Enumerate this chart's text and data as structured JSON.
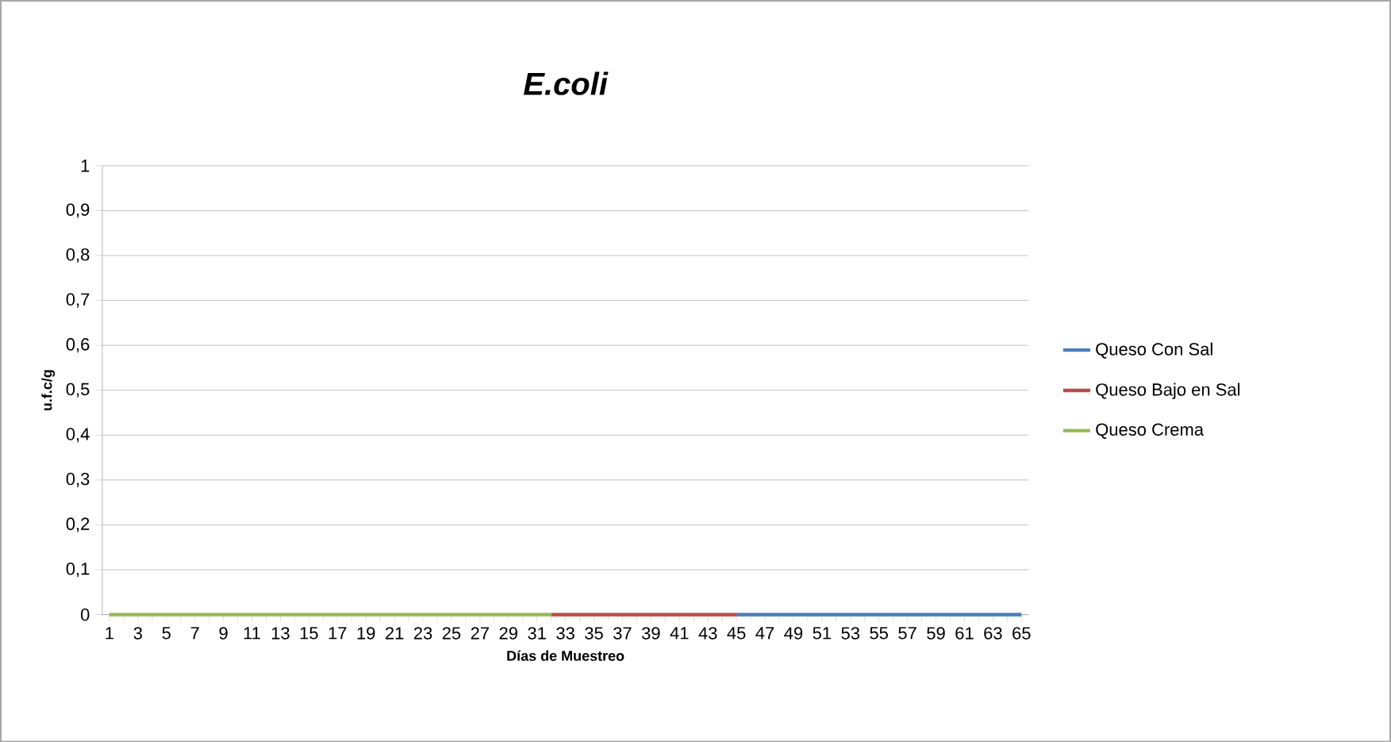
{
  "chart_data": {
    "type": "line",
    "title": "E.coli",
    "xlabel": "Días de Muestreo",
    "ylabel": "u.f.c/g",
    "categories": [
      "1",
      null,
      "3",
      null,
      "5",
      null,
      "7",
      null,
      "9",
      null,
      "11",
      null,
      "13",
      null,
      "15",
      null,
      "17",
      null,
      "19",
      null,
      "21",
      null,
      "23",
      null,
      "25",
      null,
      "27",
      null,
      "29",
      null,
      "31",
      null,
      "33",
      null,
      "35",
      null,
      "37",
      null,
      "39",
      null,
      "41",
      null,
      "43",
      null,
      "45",
      null,
      "47",
      null,
      "49",
      null,
      "51",
      null,
      "53",
      null,
      "55",
      null,
      "57",
      null,
      "59",
      null,
      "61",
      null,
      "63",
      null,
      "65"
    ],
    "series": [
      {
        "name": "Queso Con Sal",
        "color": "#4a7ebb",
        "values": [
          null,
          null,
          null,
          null,
          null,
          null,
          null,
          null,
          null,
          null,
          null,
          null,
          null,
          null,
          null,
          null,
          null,
          null,
          null,
          null,
          null,
          null,
          null,
          null,
          null,
          null,
          null,
          null,
          null,
          null,
          null,
          null,
          null,
          null,
          null,
          null,
          null,
          null,
          null,
          null,
          null,
          null,
          null,
          null,
          0,
          0,
          0,
          0,
          0,
          0,
          0,
          0,
          0,
          0,
          0,
          0,
          0,
          0,
          0,
          0,
          0,
          0,
          0,
          0,
          0
        ]
      },
      {
        "name": "Queso Bajo en Sal",
        "color": "#be4b48",
        "values": [
          null,
          null,
          null,
          null,
          null,
          null,
          null,
          null,
          null,
          null,
          null,
          null,
          null,
          null,
          null,
          null,
          null,
          null,
          null,
          null,
          null,
          null,
          null,
          null,
          null,
          null,
          null,
          null,
          null,
          null,
          null,
          0,
          0,
          0,
          0,
          0,
          0,
          0,
          0,
          0,
          0,
          0,
          0,
          0,
          0,
          null,
          null,
          null,
          null,
          null,
          null,
          null,
          null,
          null,
          null,
          null,
          null,
          null,
          null,
          null,
          null,
          null,
          null,
          null,
          null
        ]
      },
      {
        "name": "Queso Crema",
        "color": "#98b954",
        "values": [
          0,
          0,
          0,
          0,
          0,
          0,
          0,
          0,
          0,
          0,
          0,
          0,
          0,
          0,
          0,
          0,
          0,
          0,
          0,
          0,
          0,
          0,
          0,
          0,
          0,
          0,
          0,
          0,
          0,
          0,
          0,
          0,
          null,
          null,
          null,
          null,
          null,
          null,
          null,
          null,
          null,
          null,
          null,
          null,
          null,
          null,
          null,
          null,
          null,
          null,
          null,
          null,
          null,
          null,
          null,
          null,
          null,
          null,
          null,
          null,
          null,
          null,
          null,
          null,
          null
        ]
      }
    ],
    "ylim": [
      0,
      1
    ],
    "yticks": [
      0,
      {
        "value": 0.1,
        "label": "0,1"
      },
      {
        "value": 0.2,
        "label": "0,2"
      },
      {
        "value": 0.3,
        "label": "0,3"
      },
      {
        "value": 0.4,
        "label": "0,4"
      },
      {
        "value": 0.5,
        "label": "0,5"
      },
      {
        "value": 0.6,
        "label": "0,6"
      },
      {
        "value": 0.7,
        "label": "0,7"
      },
      {
        "value": 0.8,
        "label": "0,8"
      },
      {
        "value": 0.9,
        "label": "0,9"
      },
      1
    ],
    "grid": "y",
    "legend": "right",
    "marker": "none",
    "line_style": "solid"
  }
}
